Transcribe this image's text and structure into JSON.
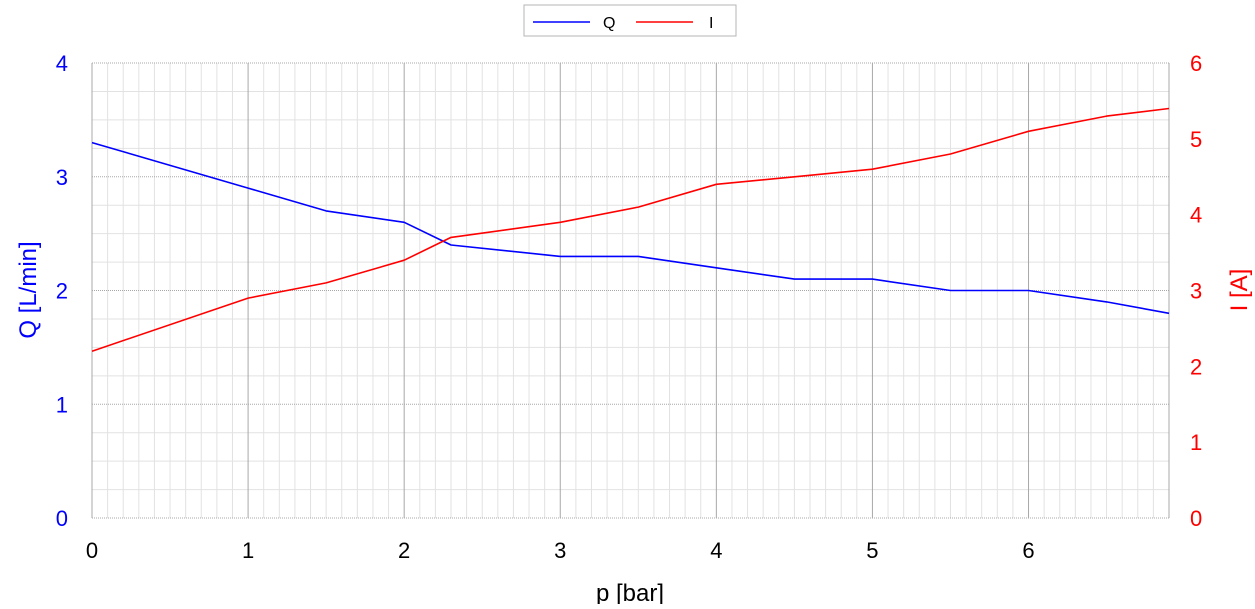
{
  "chart_data": {
    "type": "line",
    "title": "",
    "xlabel": "p [bar]",
    "ylabel": "Q [L/min]",
    "y2label": "I [A]",
    "xlim": [
      0,
      6.9
    ],
    "ylim": [
      0,
      4
    ],
    "y2lim": [
      0,
      6
    ],
    "x_ticks": [
      "0",
      "1",
      "2",
      "3",
      "4",
      "5",
      "6"
    ],
    "y_ticks": [
      "0",
      "1",
      "2",
      "3",
      "4"
    ],
    "y2_ticks": [
      "0",
      "1",
      "2",
      "3",
      "4",
      "5",
      "6"
    ],
    "grid": true,
    "legend_position": "top-center",
    "series": [
      {
        "name": "Q",
        "axis": "left",
        "color": "#0000ff",
        "x": [
          0,
          1,
          1.5,
          2,
          2.3,
          3,
          3.5,
          4,
          4.5,
          5,
          5.5,
          6,
          6.5,
          6.9
        ],
        "y": [
          3.3,
          2.9,
          2.7,
          2.6,
          2.4,
          2.3,
          2.3,
          2.2,
          2.1,
          2.1,
          2.0,
          2.0,
          1.9,
          1.8
        ]
      },
      {
        "name": "I",
        "axis": "right",
        "color": "#ff0000",
        "x": [
          0,
          1,
          1.5,
          2,
          2.3,
          3,
          3.5,
          4,
          4.5,
          5,
          5.5,
          6,
          6.5,
          6.9
        ],
        "y": [
          2.2,
          2.9,
          3.1,
          3.4,
          3.7,
          3.9,
          4.1,
          4.4,
          4.5,
          4.6,
          4.8,
          5.1,
          5.3,
          5.4
        ]
      }
    ],
    "colors": {
      "left_axis": "#0000ff",
      "right_axis": "#ff0000",
      "x_axis": "#000000",
      "major_grid": "#a8a8a8",
      "minor_grid": "#e2e2e2"
    }
  }
}
